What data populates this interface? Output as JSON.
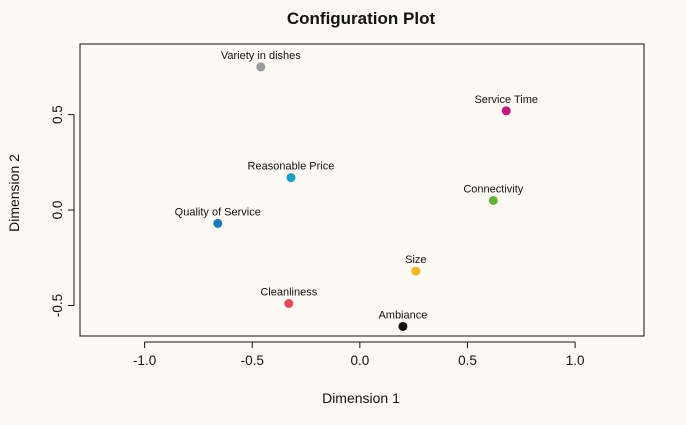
{
  "chart_data": {
    "type": "scatter",
    "title": "Configuration Plot",
    "xlabel": "Dimension 1",
    "ylabel": "Dimension 2",
    "xlim": [
      -1.3,
      1.32
    ],
    "ylim": [
      -0.66,
      0.87
    ],
    "xticks": [
      -1.0,
      -0.5,
      0.0,
      0.5,
      1.0
    ],
    "xtick_labels": [
      "-1.0",
      "-0.5",
      "0.0",
      "0.5",
      "1.0"
    ],
    "yticks": [
      -0.5,
      0.0,
      0.5
    ],
    "ytick_labels": [
      "-0.5",
      "0.0",
      "0.5"
    ],
    "grid": false,
    "points": [
      {
        "label": "Variety in dishes",
        "x": -0.46,
        "y": 0.75,
        "color": "#999999"
      },
      {
        "label": "Service Time",
        "x": 0.68,
        "y": 0.52,
        "color": "#c0187f"
      },
      {
        "label": "Reasonable Price",
        "x": -0.32,
        "y": 0.17,
        "color": "#1a9fc4"
      },
      {
        "label": "Connectivity",
        "x": 0.62,
        "y": 0.05,
        "color": "#62b23a"
      },
      {
        "label": "Quality of Service",
        "x": -0.66,
        "y": -0.07,
        "color": "#1a7ab8"
      },
      {
        "label": "Size",
        "x": 0.26,
        "y": -0.32,
        "color": "#f5b820"
      },
      {
        "label": "Cleanliness",
        "x": -0.33,
        "y": -0.49,
        "color": "#e04b5c"
      },
      {
        "label": "Ambiance",
        "x": 0.2,
        "y": -0.61,
        "color": "#111111"
      }
    ]
  }
}
